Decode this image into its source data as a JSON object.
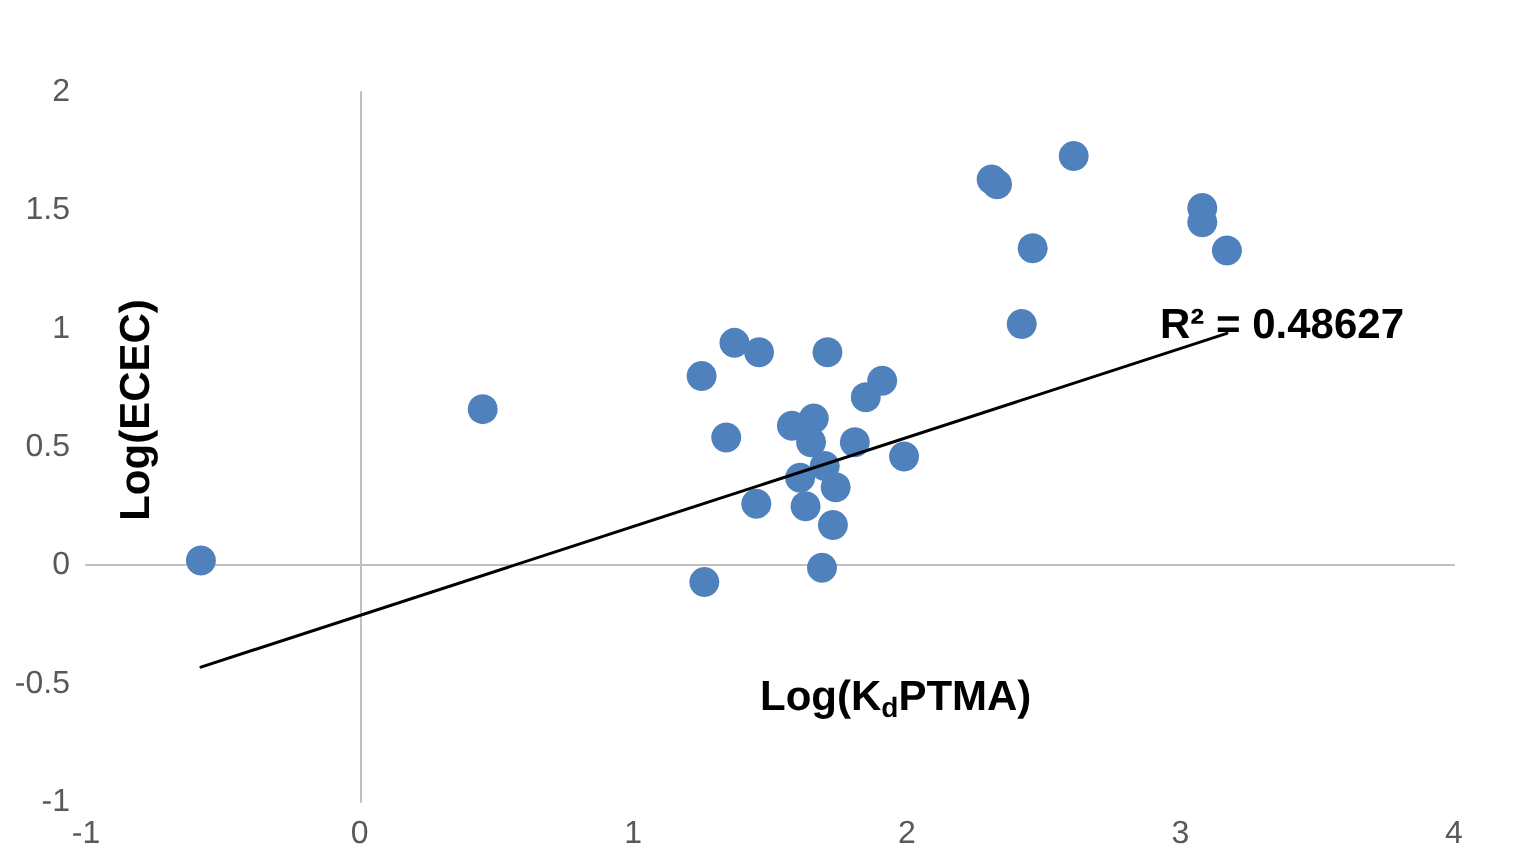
{
  "chart_data": {
    "type": "scatter",
    "xlabel": "Log(K$_{d}$PTMA)",
    "ylabel": "Log(ECEC)",
    "annotations": [
      "R² = 0.48627"
    ],
    "xlim": [
      -1,
      4
    ],
    "xticks": [
      -1,
      0,
      1,
      2,
      3,
      4
    ],
    "ylim": [
      -1,
      2
    ],
    "yticks": [
      -1,
      -0.5,
      0,
      0.5,
      1,
      1.5,
      2
    ],
    "marker": "circle",
    "series": [
      {
        "color": "#4f81bd",
        "x": [
          -0.58,
          0.45,
          1.25,
          1.37,
          1.46,
          1.71,
          1.34,
          1.58,
          1.66,
          1.65,
          1.85,
          1.91,
          1.81,
          1.99,
          1.7,
          1.61,
          1.74,
          1.45,
          1.63,
          1.73,
          1.69,
          1.26,
          2.31,
          2.33,
          2.61,
          3.08,
          3.08,
          3.17,
          2.46,
          2.42
        ],
        "values": [
          0.02,
          0.66,
          0.8,
          0.94,
          0.9,
          0.9,
          0.54,
          0.59,
          0.62,
          0.52,
          0.71,
          0.78,
          0.52,
          0.46,
          0.42,
          0.37,
          0.33,
          0.26,
          0.25,
          0.17,
          -0.01,
          -0.07,
          1.63,
          1.61,
          1.73,
          1.51,
          1.45,
          1.33,
          1.34,
          1.02
        ]
      },
      {
        "type": "line",
        "color": "#000000",
        "marker": "none",
        "x": [
          -0.58,
          3.17
        ],
        "values": [
          -0.43,
          0.98
        ]
      }
    ]
  }
}
